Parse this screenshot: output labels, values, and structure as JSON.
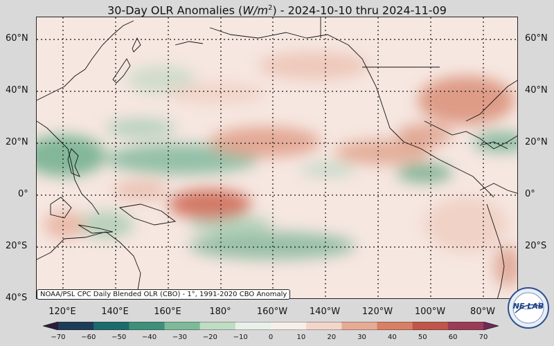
{
  "title_prefix": "30-Day OLR Anomalies (",
  "title_unit_base": "W/m",
  "title_unit_exp": "2",
  "title_suffix": ") - 2024-10-10 thru 2024-11-09",
  "source_note": "NOAA/PSL CPC Daily Blended OLR (CBO) - 1°, 1991-2020 CBO Anomaly",
  "lat_labels": [
    "60°N",
    "40°N",
    "20°N",
    "0°",
    "20°S",
    "40°S"
  ],
  "lon_labels": [
    "120°E",
    "140°E",
    "160°E",
    "180°",
    "160°W",
    "140°W",
    "120°W",
    "100°W",
    "80°W"
  ],
  "colorbar": {
    "ticks": [
      "−70",
      "−60",
      "−50",
      "−40",
      "−30",
      "−20",
      "−10",
      "0",
      "10",
      "20",
      "30",
      "40",
      "50",
      "60",
      "70"
    ],
    "colors": [
      "#2b1d3a",
      "#1e3b57",
      "#1d6a6d",
      "#3f8f7a",
      "#7db99a",
      "#bfdcc4",
      "#e8f0e9",
      "#f7eeea",
      "#f3d6cb",
      "#e6ab95",
      "#d87f66",
      "#c0554a",
      "#9b3c55",
      "#6f2a56"
    ]
  },
  "logo_text": "NE LAB",
  "colors": {
    "positive_anomaly": "#d87f66",
    "negative_anomaly": "#5aa37f",
    "neutral": "#f7e9e4"
  }
}
